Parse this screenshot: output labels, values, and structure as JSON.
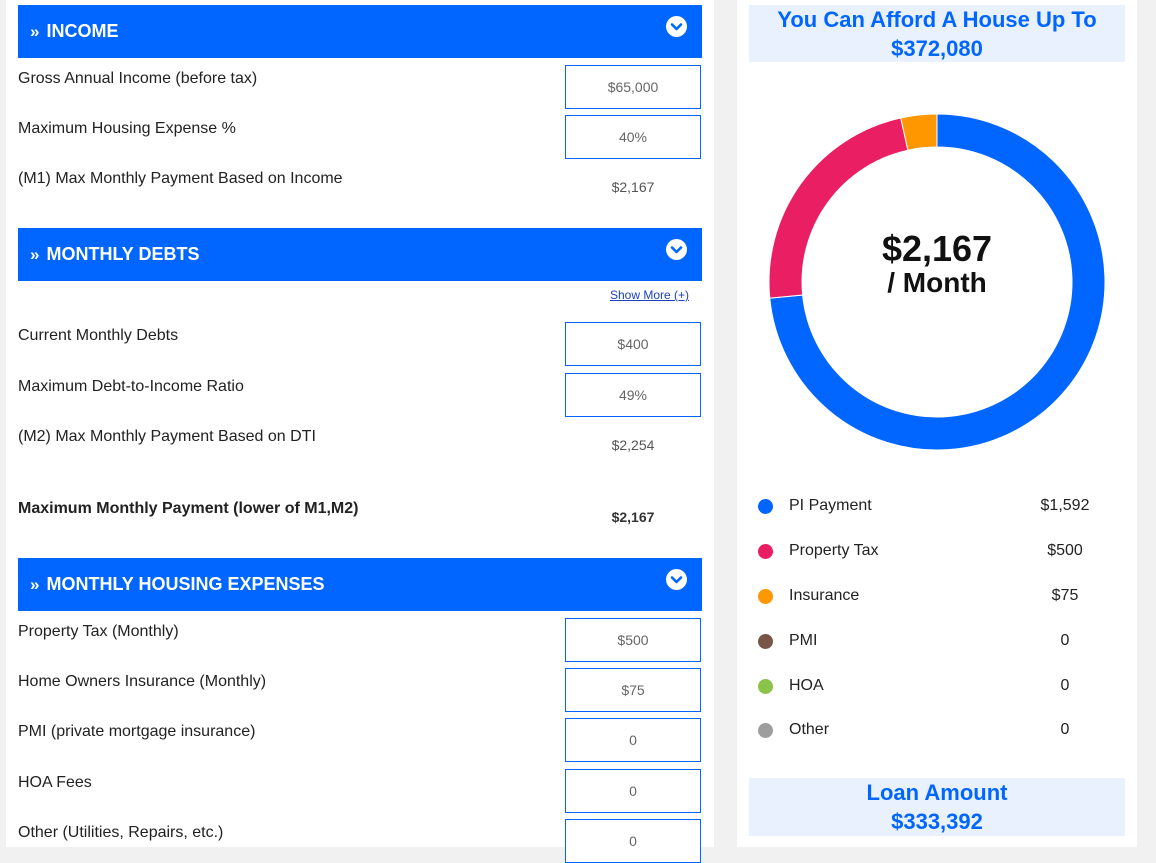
{
  "colors": {
    "accent": "#0066ff",
    "pi": "#0066ff",
    "property_tax": "#e91e63",
    "insurance": "#ff9800",
    "pmi": "#795548",
    "hoa": "#8bc34a",
    "other": "#9e9e9e"
  },
  "income": {
    "header": "INCOME",
    "gross_label": "Gross Annual Income (before tax)",
    "gross_value": "$65,000",
    "max_housing_label": "Maximum Housing Expense %",
    "max_housing_value": "40%",
    "m1_label": "(M1) Max Monthly Payment Based on Income",
    "m1_value": "$2,167"
  },
  "debts": {
    "header": "MONTHLY DEBTS",
    "show_more": "Show More (+)",
    "current_label": "Current Monthly Debts",
    "current_value": "$400",
    "dti_label": "Maximum Debt-to-Income Ratio",
    "dti_value": "49%",
    "m2_label": "(M2) Max Monthly Payment Based on DTI",
    "m2_value": "$2,254"
  },
  "max_payment": {
    "label": "Maximum Monthly Payment (lower of M1,M2)",
    "value": "$2,167"
  },
  "housing": {
    "header": "MONTHLY HOUSING EXPENSES",
    "property_tax_label": "Property Tax (Monthly)",
    "property_tax_value": "$500",
    "insurance_label": "Home Owners Insurance (Monthly)",
    "insurance_value": "$75",
    "pmi_label": "PMI (private mortgage insurance)",
    "pmi_value": "0",
    "hoa_label": "HOA Fees",
    "hoa_value": "0",
    "other_label": "Other (Utilities, Repairs, etc.)",
    "other_value": "0"
  },
  "result": {
    "afford_line1": "You Can Afford A House Up To",
    "afford_line2": "$372,080",
    "center_amount": "$2,167",
    "center_period": "/ Month",
    "loan_line1": "Loan Amount",
    "loan_line2": "$333,392"
  },
  "legend": [
    {
      "label": "PI Payment",
      "value": "$1,592",
      "color": "#0066ff",
      "amount": 1592
    },
    {
      "label": "Property Tax",
      "value": "$500",
      "color": "#e91e63",
      "amount": 500
    },
    {
      "label": "Insurance",
      "value": "$75",
      "color": "#ff9800",
      "amount": 75
    },
    {
      "label": "PMI",
      "value": "0",
      "color": "#795548",
      "amount": 0
    },
    {
      "label": "HOA",
      "value": "0",
      "color": "#8bc34a",
      "amount": 0
    },
    {
      "label": "Other",
      "value": "0",
      "color": "#9e9e9e",
      "amount": 0
    }
  ]
}
